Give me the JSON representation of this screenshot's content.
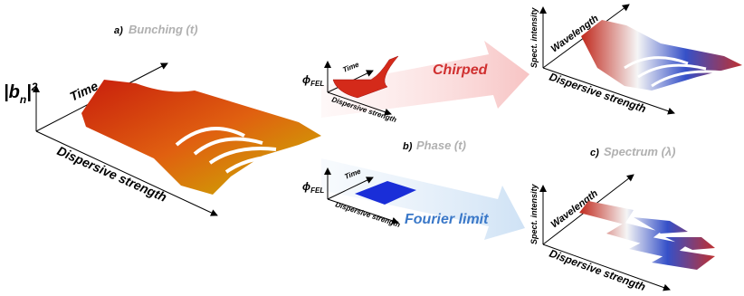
{
  "panel_a": {
    "label": "a)",
    "title": "Bunching (t)",
    "ylabel": {
      "base": "|b",
      "sub": "n",
      "end": "|",
      "sup": "2"
    },
    "axis_time": "Time",
    "axis_dispersive": "Dispersive strength"
  },
  "panel_b": {
    "label": "b)",
    "title": "Phase (t)",
    "top": {
      "ylabel": {
        "base": "ϕ",
        "sub": "FEL"
      },
      "axis_time": "Time",
      "axis_dispersive": "Dispersive strength",
      "arrow_label": "Chirped"
    },
    "bottom": {
      "ylabel": {
        "base": "ϕ",
        "sub": "FEL"
      },
      "axis_time": "Time",
      "axis_dispersive": "Dispersive strength",
      "arrow_label": "Fourier limit"
    }
  },
  "panel_c": {
    "label": "c)",
    "title": "Spectrum (λ)",
    "top": {
      "ylabel": "Spect. intensity",
      "axis_wavelength": "Wavelength",
      "axis_dispersive": "Dispersive strength"
    },
    "bottom": {
      "ylabel": "Spect. intensity",
      "axis_wavelength": "Wavelength",
      "axis_dispersive": "Dispersive strength"
    }
  }
}
